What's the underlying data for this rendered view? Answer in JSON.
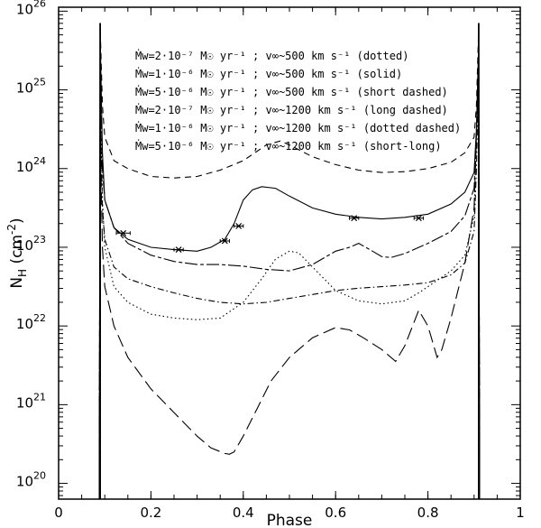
{
  "chart_data": {
    "type": "line",
    "xlabel": "Phase",
    "ylabel": "N_H (cm^-2)",
    "xlim": [
      0,
      1
    ],
    "ylim": [
      19.8,
      26.05
    ],
    "y_scale": "log10",
    "grid": false,
    "legend_position": "top-center",
    "x_ticks": [
      "0",
      "0.2",
      "0.4",
      "0.6",
      "0.8",
      "1"
    ],
    "x_tick_values": [
      0,
      0.2,
      0.4,
      0.6,
      0.8,
      1
    ],
    "y_ticks": [
      {
        "value": 20,
        "base": "10",
        "exp": "20"
      },
      {
        "value": 21,
        "base": "10",
        "exp": "21"
      },
      {
        "value": 22,
        "base": "10",
        "exp": "22"
      },
      {
        "value": 23,
        "base": "10",
        "exp": "23"
      },
      {
        "value": 24,
        "base": "10",
        "exp": "24"
      },
      {
        "value": 25,
        "base": "10",
        "exp": "25"
      },
      {
        "value": 26,
        "base": "10",
        "exp": "26"
      }
    ],
    "legend": [
      "Ṁw=2·10⁻⁷ M☉ yr⁻¹ ; v∞~500 km s⁻¹ (dotted)",
      "Ṁw=1·10⁻⁶ M☉ yr⁻¹ ; v∞~500 km s⁻¹ (solid)",
      "Ṁw=5·10⁻⁶ M☉ yr⁻¹ ; v∞~500 km s⁻¹ (short dashed)",
      "Ṁw=2·10⁻⁷ M☉ yr⁻¹ ; v∞~1200 km s⁻¹ (long dashed)",
      "Ṁw=1·10⁻⁶ M☉ yr⁻¹ ; v∞~1200 km s⁻¹ (dotted dashed)",
      "Ṁw=5·10⁻⁶ M☉ yr⁻¹ ; v∞~1200 km s⁻¹ (short-long)"
    ],
    "series": [
      {
        "name": "Ṁw=2·10⁻⁷ M☉ yr⁻¹ ; v∞~500 km s⁻¹ (dotted)",
        "style": "dotted",
        "x": [
          0.088,
          0.09,
          0.095,
          0.1,
          0.12,
          0.15,
          0.2,
          0.25,
          0.3,
          0.35,
          0.4,
          0.44,
          0.47,
          0.5,
          0.52,
          0.55,
          0.6,
          0.65,
          0.7,
          0.75,
          0.78,
          0.8,
          0.85,
          0.88,
          0.9,
          0.905,
          0.91,
          0.912
        ],
        "y": [
          19.8,
          25.0,
          23.6,
          23.0,
          22.5,
          22.3,
          22.15,
          22.1,
          22.08,
          22.1,
          22.3,
          22.6,
          22.85,
          22.95,
          22.93,
          22.75,
          22.45,
          22.32,
          22.28,
          22.32,
          22.42,
          22.5,
          22.7,
          22.9,
          23.4,
          24.5,
          25.3,
          19.8
        ]
      },
      {
        "name": "Ṁw=1·10⁻⁶ M☉ yr⁻¹ ; v∞~500 km s⁻¹ (solid)",
        "style": "solid",
        "x": [
          0.088,
          0.09,
          0.095,
          0.1,
          0.12,
          0.15,
          0.2,
          0.25,
          0.3,
          0.33,
          0.36,
          0.38,
          0.4,
          0.42,
          0.44,
          0.47,
          0.5,
          0.55,
          0.6,
          0.65,
          0.7,
          0.75,
          0.8,
          0.85,
          0.88,
          0.9,
          0.905,
          0.91,
          0.912
        ],
        "y": [
          19.8,
          25.7,
          24.2,
          23.6,
          23.25,
          23.1,
          23.0,
          22.97,
          22.95,
          23.0,
          23.1,
          23.3,
          23.6,
          23.73,
          23.77,
          23.75,
          23.65,
          23.5,
          23.42,
          23.38,
          23.36,
          23.38,
          23.42,
          23.55,
          23.7,
          23.95,
          24.5,
          25.6,
          19.8
        ]
      },
      {
        "name": "Ṁw=5·10⁻⁶ M☉ yr⁻¹ ; v∞~500 km s⁻¹ (short dashed)",
        "style": "short-dashed",
        "x": [
          0.088,
          0.09,
          0.095,
          0.1,
          0.12,
          0.15,
          0.2,
          0.25,
          0.3,
          0.35,
          0.4,
          0.45,
          0.48,
          0.5,
          0.55,
          0.6,
          0.65,
          0.7,
          0.75,
          0.8,
          0.85,
          0.88,
          0.9,
          0.905,
          0.91,
          0.912
        ],
        "y": [
          19.8,
          25.8,
          24.8,
          24.4,
          24.1,
          24.0,
          23.9,
          23.88,
          23.9,
          23.98,
          24.1,
          24.3,
          24.35,
          24.3,
          24.15,
          24.05,
          23.98,
          23.95,
          23.96,
          24.0,
          24.08,
          24.2,
          24.4,
          24.8,
          25.8,
          19.8
        ]
      },
      {
        "name": "Ṁw=2·10⁻⁷ M☉ yr⁻¹ ; v∞~1200 km s⁻¹ (long dashed)",
        "style": "long-dashed",
        "x": [
          0.088,
          0.09,
          0.095,
          0.1,
          0.12,
          0.15,
          0.2,
          0.25,
          0.3,
          0.33,
          0.36,
          0.37,
          0.38,
          0.4,
          0.43,
          0.46,
          0.5,
          0.55,
          0.6,
          0.63,
          0.66,
          0.7,
          0.73,
          0.75,
          0.78,
          0.8,
          0.82,
          0.83,
          0.85,
          0.88,
          0.9,
          0.905,
          0.91,
          0.912
        ],
        "y": [
          19.8,
          24.5,
          23.0,
          22.5,
          22.0,
          21.6,
          21.2,
          20.9,
          20.6,
          20.45,
          20.38,
          20.37,
          20.4,
          20.6,
          20.95,
          21.3,
          21.6,
          21.85,
          21.98,
          21.95,
          21.85,
          21.7,
          21.55,
          21.75,
          22.2,
          22.0,
          21.6,
          21.7,
          22.1,
          22.8,
          23.5,
          24.4,
          25.2,
          19.8
        ]
      },
      {
        "name": "Ṁw=1·10⁻⁶ M☉ yr⁻¹ ; v∞~1200 km s⁻¹ (dotted dashed)",
        "style": "dotted-dashed",
        "x": [
          0.088,
          0.09,
          0.095,
          0.1,
          0.12,
          0.15,
          0.2,
          0.25,
          0.3,
          0.35,
          0.4,
          0.45,
          0.5,
          0.55,
          0.6,
          0.65,
          0.7,
          0.75,
          0.8,
          0.85,
          0.88,
          0.9,
          0.905,
          0.91,
          0.912
        ],
        "y": [
          19.8,
          24.8,
          23.5,
          23.1,
          22.75,
          22.6,
          22.5,
          22.42,
          22.35,
          22.3,
          22.28,
          22.3,
          22.35,
          22.4,
          22.45,
          22.48,
          22.5,
          22.52,
          22.55,
          22.65,
          22.8,
          23.2,
          24.0,
          25.2,
          19.8
        ]
      },
      {
        "name": "Ṁw=5·10⁻⁶ M☉ yr⁻¹ ; v∞~1200 km s⁻¹ (short-long)",
        "style": "short-long",
        "x": [
          0.088,
          0.09,
          0.095,
          0.1,
          0.12,
          0.15,
          0.2,
          0.25,
          0.3,
          0.35,
          0.4,
          0.45,
          0.5,
          0.55,
          0.6,
          0.63,
          0.65,
          0.68,
          0.7,
          0.72,
          0.75,
          0.8,
          0.85,
          0.88,
          0.9,
          0.905,
          0.91,
          0.912
        ],
        "y": [
          19.8,
          25.3,
          24.0,
          23.6,
          23.25,
          23.05,
          22.9,
          22.82,
          22.78,
          22.78,
          22.76,
          22.72,
          22.7,
          22.78,
          22.95,
          23.0,
          23.05,
          22.95,
          22.88,
          22.87,
          22.92,
          23.05,
          23.2,
          23.4,
          23.75,
          24.4,
          25.6,
          19.8
        ]
      }
    ],
    "observations": {
      "x": [
        0.14,
        0.26,
        0.36,
        0.39,
        0.64,
        0.78
      ],
      "y": [
        23.18,
        22.97,
        23.08,
        23.27,
        23.37,
        23.37
      ],
      "xerr": [
        0.015,
        0.01,
        0.01,
        0.01,
        0.01,
        0.01
      ]
    },
    "eclipse_edges": [
      0.09,
      0.91
    ]
  }
}
